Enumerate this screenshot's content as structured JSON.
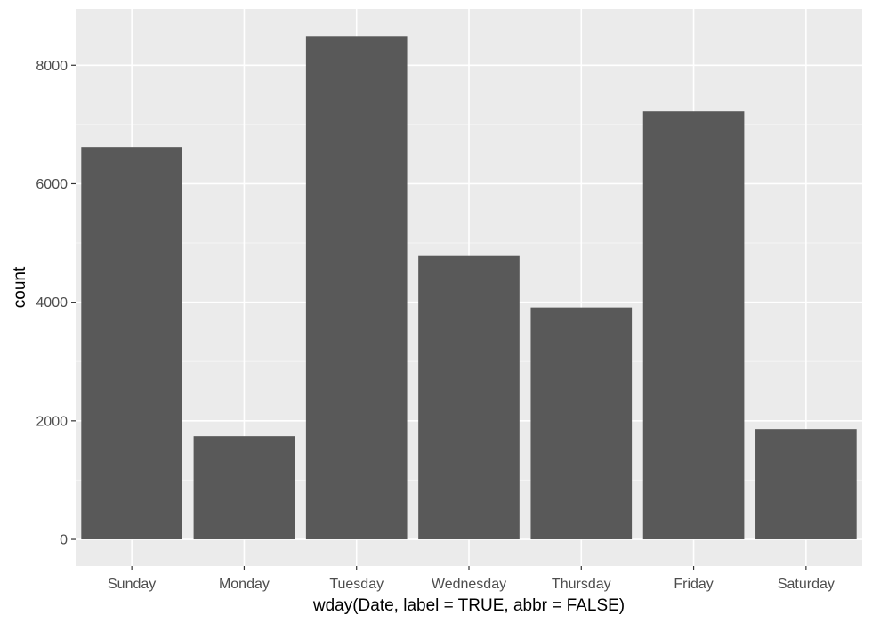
{
  "chart_data": {
    "type": "bar",
    "title": "",
    "xlabel": "wday(Date, label = TRUE, abbr = FALSE)",
    "ylabel": "count",
    "categories": [
      "Sunday",
      "Monday",
      "Tuesday",
      "Wednesday",
      "Thursday",
      "Friday",
      "Saturday"
    ],
    "values": [
      6620,
      1740,
      8480,
      4780,
      3910,
      7220,
      1860
    ],
    "ylim": [
      -450,
      8950
    ],
    "yticks": [
      0,
      2000,
      4000,
      6000,
      8000
    ],
    "ytick_labels": [
      "0",
      "2000",
      "4000",
      "6000",
      "8000"
    ],
    "grid": true,
    "legend": "none",
    "colors": {
      "panel_bg": "#ebebeb",
      "grid_major": "#ffffff",
      "grid_minor": "#f5f5f5",
      "bar_fill": "#595959",
      "tick_text": "#4d4d4d",
      "axis_title": "#000000"
    }
  }
}
